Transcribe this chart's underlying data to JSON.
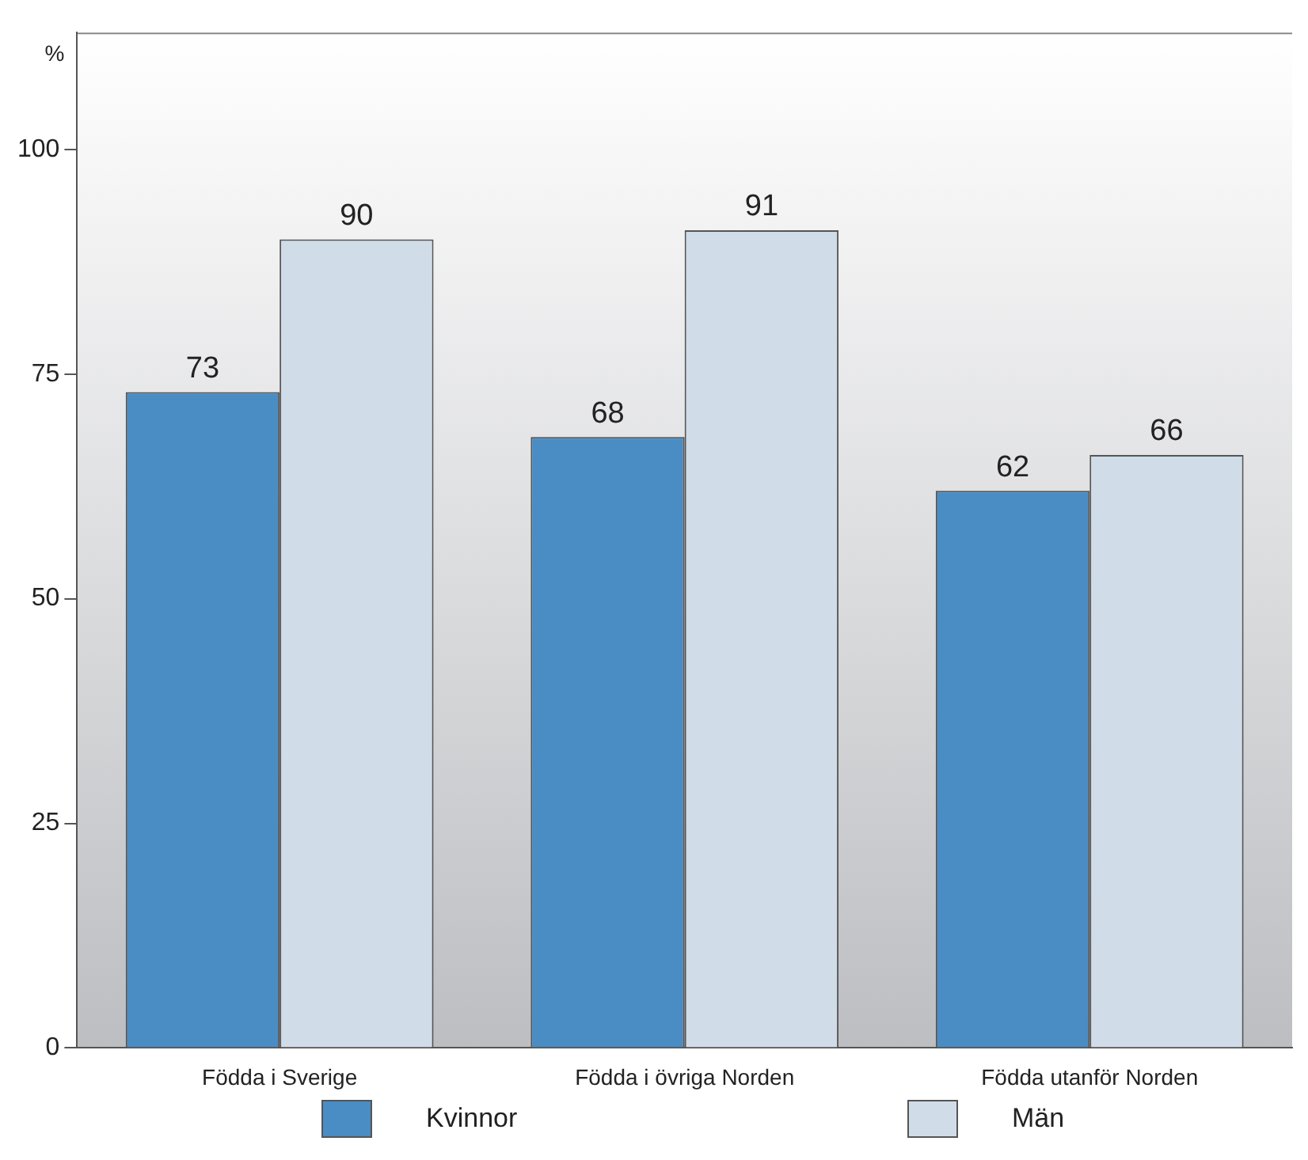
{
  "chart_data": {
    "type": "bar",
    "ylabel": "%",
    "categories": [
      "Födda i Sverige",
      "Födda i övriga Norden",
      "Födda utanför Norden"
    ],
    "series": [
      {
        "name": "Kvinnor",
        "color": "#4a8cc4",
        "values": [
          73,
          68,
          62
        ]
      },
      {
        "name": "Män",
        "color": "#d0dce8",
        "values": [
          90,
          91,
          66
        ]
      }
    ],
    "ylim": [
      0,
      113
    ],
    "yticks": [
      0,
      25,
      50,
      75,
      100
    ],
    "grid": false,
    "legend": "bottom",
    "data_labels": true
  }
}
